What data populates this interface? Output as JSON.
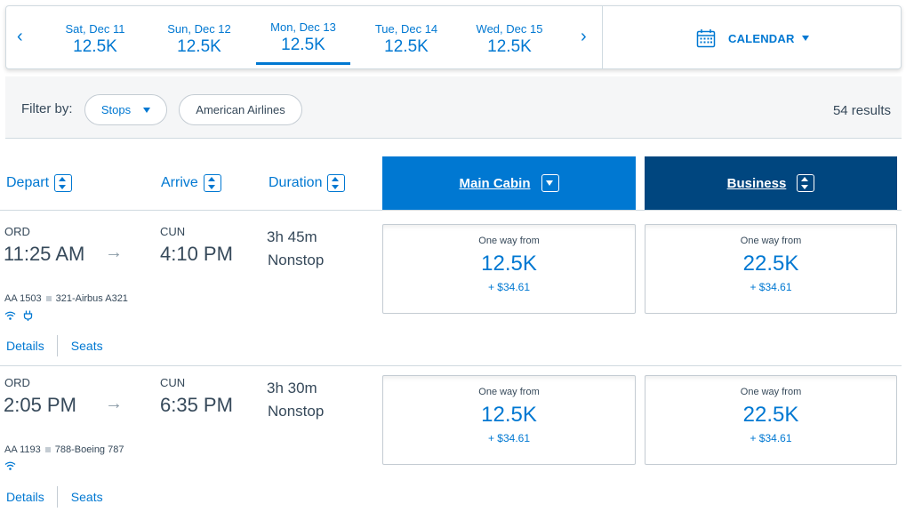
{
  "date_strip": {
    "prev_arrow": "‹",
    "next_arrow": "›",
    "dates": [
      {
        "label": "Sat, Dec 11",
        "price": "12.5K"
      },
      {
        "label": "Sun, Dec 12",
        "price": "12.5K"
      },
      {
        "label": "Mon, Dec 13",
        "price": "12.5K",
        "active": true
      },
      {
        "label": "Tue, Dec 14",
        "price": "12.5K"
      },
      {
        "label": "Wed, Dec 15",
        "price": "12.5K"
      }
    ],
    "calendar_label": "CALENDAR",
    "calendar_icon": "calendar-icon"
  },
  "filters": {
    "label": "Filter by:",
    "stops": "Stops",
    "airline": "American Airlines",
    "results": "54 results"
  },
  "columns": {
    "depart": "Depart",
    "arrive": "Arrive",
    "duration": "Duration",
    "main_cabin": "Main Cabin",
    "business": "Business"
  },
  "flights": [
    {
      "origin": "ORD",
      "depart_time": "11:25 AM",
      "destination": "CUN",
      "arrive_time": "4:10 PM",
      "duration": "3h 45m",
      "stops": "Nonstop",
      "flight_number": "AA 1503",
      "aircraft": "321-Airbus A321",
      "amenities": [
        "wifi-icon",
        "power-icon"
      ],
      "details": "Details",
      "seats": "Seats",
      "main": {
        "from": "One way from",
        "miles": "12.5K",
        "tax": "+ $34.61"
      },
      "business": {
        "from": "One way from",
        "miles": "22.5K",
        "tax": "+ $34.61"
      }
    },
    {
      "origin": "ORD",
      "depart_time": "2:05 PM",
      "destination": "CUN",
      "arrive_time": "6:35 PM",
      "duration": "3h 30m",
      "stops": "Nonstop",
      "flight_number": "AA 1193",
      "aircraft": "788-Boeing 787",
      "amenities": [
        "wifi-icon"
      ],
      "details": "Details",
      "seats": "Seats",
      "main": {
        "from": "One way from",
        "miles": "12.5K",
        "tax": "+ $34.61"
      },
      "business": {
        "from": "One way from",
        "miles": "22.5K",
        "tax": "+ $34.61"
      }
    }
  ],
  "colors": {
    "primary_blue": "#0078d2",
    "dark_blue": "#00467f",
    "text": "#36495a",
    "border": "#d0dae0"
  }
}
